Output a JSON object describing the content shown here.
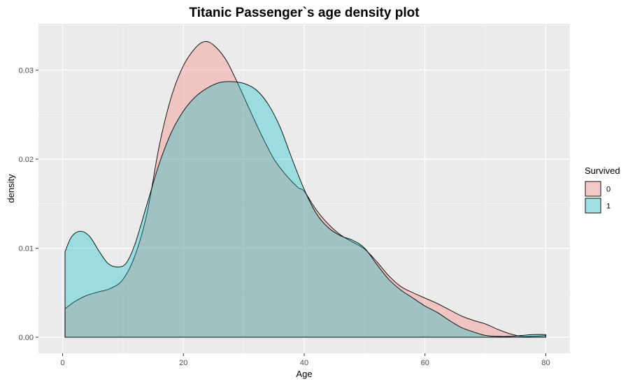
{
  "chart_data": {
    "type": "area",
    "title": "Titanic Passenger`s age density plot",
    "xlabel": "Age",
    "ylabel": "density",
    "xlim": [
      -4,
      84
    ],
    "ylim": [
      -0.0018,
      0.0352
    ],
    "x_ticks": [
      0,
      20,
      40,
      60,
      80
    ],
    "x_tick_labels": [
      "0",
      "20",
      "40",
      "60",
      "80"
    ],
    "y_ticks": [
      0.0,
      0.01,
      0.02,
      0.03
    ],
    "y_tick_labels": [
      "0.00",
      "0.01",
      "0.02",
      "0.03"
    ],
    "grid": true,
    "legend": {
      "title": "Survived",
      "position": "right"
    },
    "series": [
      {
        "name": "0",
        "color": "#F8766D",
        "x": [
          0.4,
          2,
          4,
          6,
          8,
          10,
          12,
          14,
          16,
          18,
          20,
          22,
          23.5,
          25,
          27,
          29,
          31,
          33,
          35,
          37,
          39,
          40,
          42,
          44,
          46,
          48,
          50,
          52,
          54,
          56,
          58,
          60,
          62,
          64,
          66,
          68,
          70,
          72,
          74,
          76,
          78,
          80
        ],
        "values": [
          0.0032,
          0.004,
          0.0047,
          0.0051,
          0.0055,
          0.0065,
          0.0092,
          0.014,
          0.0215,
          0.027,
          0.0305,
          0.0325,
          0.0332,
          0.0328,
          0.0312,
          0.0285,
          0.0255,
          0.0226,
          0.02,
          0.0182,
          0.0168,
          0.0164,
          0.0143,
          0.0127,
          0.0115,
          0.0107,
          0.0099,
          0.0085,
          0.0069,
          0.0057,
          0.005,
          0.0044,
          0.0038,
          0.0031,
          0.0024,
          0.0019,
          0.0015,
          0.0009,
          0.0004,
          0.0001,
          0.0001,
          0.0002
        ]
      },
      {
        "name": "1",
        "color": "#00BFC4",
        "x": [
          0.4,
          1.5,
          3,
          4.5,
          6,
          7.5,
          9,
          10.5,
          12,
          14,
          16,
          18,
          20,
          22,
          24,
          26,
          28,
          30,
          32,
          34,
          36,
          38,
          40,
          42,
          44,
          46,
          48,
          50,
          52,
          54,
          56,
          58,
          60,
          62,
          64,
          66,
          68,
          70,
          72,
          74,
          76,
          78,
          80
        ],
        "values": [
          0.0096,
          0.0113,
          0.0119,
          0.0113,
          0.0097,
          0.0083,
          0.0079,
          0.0083,
          0.0105,
          0.015,
          0.0195,
          0.023,
          0.0254,
          0.027,
          0.028,
          0.0286,
          0.0287,
          0.0285,
          0.0278,
          0.0262,
          0.0236,
          0.02,
          0.0166,
          0.0139,
          0.0123,
          0.0114,
          0.0109,
          0.01,
          0.0082,
          0.0065,
          0.0053,
          0.0044,
          0.0035,
          0.0028,
          0.0019,
          0.0011,
          0.0006,
          0.0002,
          0.0001,
          0.0001,
          0.0002,
          0.0003,
          0.0003
        ]
      }
    ]
  }
}
